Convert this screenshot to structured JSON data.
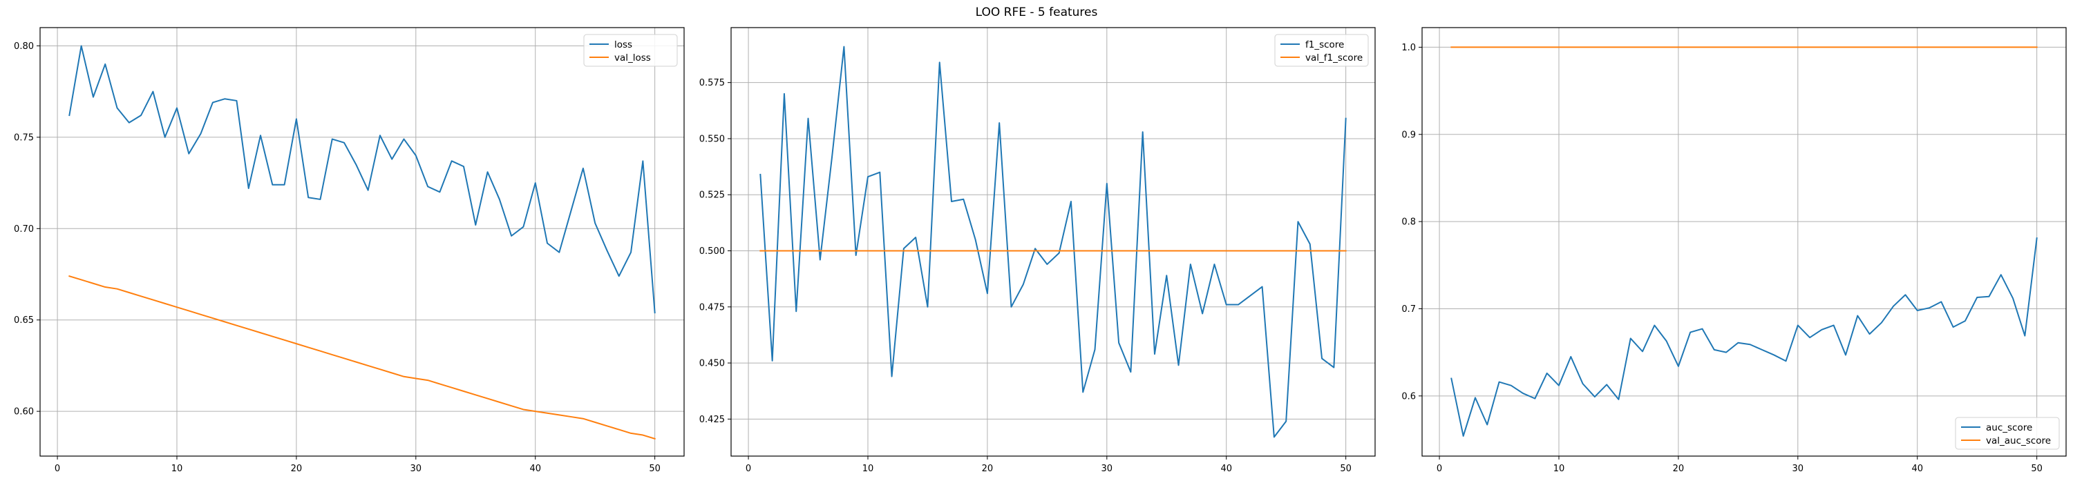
{
  "suptitle": "LOO RFE - 5 features",
  "colors": {
    "blue": "#1f77b4",
    "orange": "#ff7f0e",
    "grid": "#b0b0b0",
    "axis": "#000000"
  },
  "chart_data": [
    {
      "type": "line",
      "title": "",
      "xlabel": "",
      "ylabel": "",
      "grid": true,
      "legend_placement": "top-right",
      "xlim": [
        -1.45,
        52.45
      ],
      "ylim": [
        0.5755,
        0.81
      ],
      "xticks": [
        0,
        10,
        20,
        30,
        40,
        50
      ],
      "xtick_labels": [
        "0",
        "10",
        "20",
        "30",
        "40",
        "50"
      ],
      "yticks": [
        0.6,
        0.65,
        0.7,
        0.75,
        0.8
      ],
      "ytick_labels": [
        "0.60",
        "0.65",
        "0.70",
        "0.75",
        "0.80"
      ],
      "x": [
        1,
        2,
        3,
        4,
        5,
        6,
        7,
        8,
        9,
        10,
        11,
        12,
        13,
        14,
        15,
        16,
        17,
        18,
        19,
        20,
        21,
        22,
        23,
        24,
        25,
        26,
        27,
        28,
        29,
        30,
        31,
        32,
        33,
        34,
        35,
        36,
        37,
        38,
        39,
        40,
        41,
        42,
        43,
        44,
        45,
        46,
        47,
        48,
        49,
        50
      ],
      "series": [
        {
          "name": "loss",
          "color": "#1f77b4",
          "values": [
            0.762,
            0.8,
            0.772,
            0.79,
            0.766,
            0.758,
            0.762,
            0.775,
            0.75,
            0.766,
            0.741,
            0.752,
            0.769,
            0.771,
            0.77,
            0.722,
            0.751,
            0.724,
            0.724,
            0.76,
            0.717,
            0.716,
            0.749,
            0.747,
            0.735,
            0.721,
            0.751,
            0.738,
            0.749,
            0.74,
            0.723,
            0.72,
            0.737,
            0.734,
            0.702,
            0.731,
            0.716,
            0.696,
            0.701,
            0.725,
            0.692,
            0.687,
            0.71,
            0.733,
            0.703,
            0.688,
            0.674,
            0.687,
            0.737,
            0.654
          ]
        },
        {
          "name": "val_loss",
          "color": "#ff7f0e",
          "values": [
            0.674,
            0.672,
            0.67,
            0.668,
            0.667,
            0.665,
            0.663,
            0.661,
            0.659,
            0.657,
            0.655,
            0.653,
            0.651,
            0.649,
            0.647,
            0.645,
            0.643,
            0.641,
            0.639,
            0.637,
            0.635,
            0.633,
            0.631,
            0.629,
            0.627,
            0.625,
            0.623,
            0.621,
            0.619,
            0.618,
            0.617,
            0.615,
            0.613,
            0.611,
            0.609,
            0.607,
            0.605,
            0.603,
            0.601,
            0.6,
            0.599,
            0.598,
            0.597,
            0.596,
            0.594,
            0.592,
            0.59,
            0.588,
            0.587,
            0.585
          ]
        }
      ]
    },
    {
      "type": "line",
      "title": "",
      "xlabel": "",
      "ylabel": "",
      "grid": true,
      "legend_placement": "top-right",
      "xlim": [
        -1.45,
        52.45
      ],
      "ylim": [
        0.4085,
        0.5995
      ],
      "xticks": [
        0,
        10,
        20,
        30,
        40,
        50
      ],
      "xtick_labels": [
        "0",
        "10",
        "20",
        "30",
        "40",
        "50"
      ],
      "yticks": [
        0.425,
        0.45,
        0.475,
        0.5,
        0.525,
        0.55,
        0.575
      ],
      "ytick_labels": [
        "0.425",
        "0.450",
        "0.475",
        "0.500",
        "0.525",
        "0.550",
        "0.575"
      ],
      "x": [
        1,
        2,
        3,
        4,
        5,
        6,
        7,
        8,
        9,
        10,
        11,
        12,
        13,
        14,
        15,
        16,
        17,
        18,
        19,
        20,
        21,
        22,
        23,
        24,
        25,
        26,
        27,
        28,
        29,
        30,
        31,
        32,
        33,
        34,
        35,
        36,
        37,
        38,
        39,
        40,
        41,
        42,
        43,
        44,
        45,
        46,
        47,
        48,
        49,
        50
      ],
      "series": [
        {
          "name": "f1_score",
          "color": "#1f77b4",
          "values": [
            0.534,
            0.451,
            0.57,
            0.473,
            0.559,
            0.496,
            0.542,
            0.591,
            0.498,
            0.533,
            0.535,
            0.444,
            0.501,
            0.506,
            0.475,
            0.584,
            0.522,
            0.523,
            0.505,
            0.481,
            0.557,
            0.475,
            0.485,
            0.501,
            0.494,
            0.499,
            0.522,
            0.437,
            0.456,
            0.53,
            0.459,
            0.446,
            0.553,
            0.454,
            0.489,
            0.449,
            0.494,
            0.472,
            0.494,
            0.476,
            0.476,
            0.48,
            0.484,
            0.417,
            0.424,
            0.513,
            0.503,
            0.452,
            0.448,
            0.559
          ]
        },
        {
          "name": "val_f1_score",
          "color": "#ff7f0e",
          "values": [
            0.5,
            0.5,
            0.5,
            0.5,
            0.5,
            0.5,
            0.5,
            0.5,
            0.5,
            0.5,
            0.5,
            0.5,
            0.5,
            0.5,
            0.5,
            0.5,
            0.5,
            0.5,
            0.5,
            0.5,
            0.5,
            0.5,
            0.5,
            0.5,
            0.5,
            0.5,
            0.5,
            0.5,
            0.5,
            0.5,
            0.5,
            0.5,
            0.5,
            0.5,
            0.5,
            0.5,
            0.5,
            0.5,
            0.5,
            0.5,
            0.5,
            0.5,
            0.5,
            0.5,
            0.5,
            0.5,
            0.5,
            0.5,
            0.5,
            0.5
          ]
        }
      ]
    },
    {
      "type": "line",
      "title": "",
      "xlabel": "",
      "ylabel": "",
      "grid": true,
      "legend_placement": "bottom-right",
      "xlim": [
        -1.45,
        52.45
      ],
      "ylim": [
        0.531,
        1.0225
      ],
      "xticks": [
        0,
        10,
        20,
        30,
        40,
        50
      ],
      "xtick_labels": [
        "0",
        "10",
        "20",
        "30",
        "40",
        "50"
      ],
      "yticks": [
        0.6,
        0.7,
        0.8,
        0.9,
        1.0
      ],
      "ytick_labels": [
        "0.6",
        "0.7",
        "0.8",
        "0.9",
        "1.0"
      ],
      "x": [
        1,
        2,
        3,
        4,
        5,
        6,
        7,
        8,
        9,
        10,
        11,
        12,
        13,
        14,
        15,
        16,
        17,
        18,
        19,
        20,
        21,
        22,
        23,
        24,
        25,
        26,
        27,
        28,
        29,
        30,
        31,
        32,
        33,
        34,
        35,
        36,
        37,
        38,
        39,
        40,
        41,
        42,
        43,
        44,
        45,
        46,
        47,
        48,
        49,
        50
      ],
      "series": [
        {
          "name": "auc_score",
          "color": "#1f77b4",
          "values": [
            0.62,
            0.554,
            0.598,
            0.567,
            0.616,
            0.612,
            0.603,
            0.597,
            0.626,
            0.612,
            0.645,
            0.614,
            0.599,
            0.613,
            0.596,
            0.666,
            0.651,
            0.681,
            0.663,
            0.634,
            0.673,
            0.677,
            0.653,
            0.65,
            0.661,
            0.659,
            0.653,
            0.647,
            0.64,
            0.681,
            0.667,
            0.676,
            0.681,
            0.647,
            0.692,
            0.671,
            0.684,
            0.703,
            0.716,
            0.698,
            0.701,
            0.708,
            0.679,
            0.686,
            0.713,
            0.714,
            0.739,
            0.712,
            0.669,
            0.781
          ]
        },
        {
          "name": "val_auc_score",
          "color": "#ff7f0e",
          "values": [
            1.0,
            1.0,
            1.0,
            1.0,
            1.0,
            1.0,
            1.0,
            1.0,
            1.0,
            1.0,
            1.0,
            1.0,
            1.0,
            1.0,
            1.0,
            1.0,
            1.0,
            1.0,
            1.0,
            1.0,
            1.0,
            1.0,
            1.0,
            1.0,
            1.0,
            1.0,
            1.0,
            1.0,
            1.0,
            1.0,
            1.0,
            1.0,
            1.0,
            1.0,
            1.0,
            1.0,
            1.0,
            1.0,
            1.0,
            1.0,
            1.0,
            1.0,
            1.0,
            1.0,
            1.0,
            1.0,
            1.0,
            1.0,
            1.0,
            1.0
          ]
        }
      ]
    }
  ]
}
